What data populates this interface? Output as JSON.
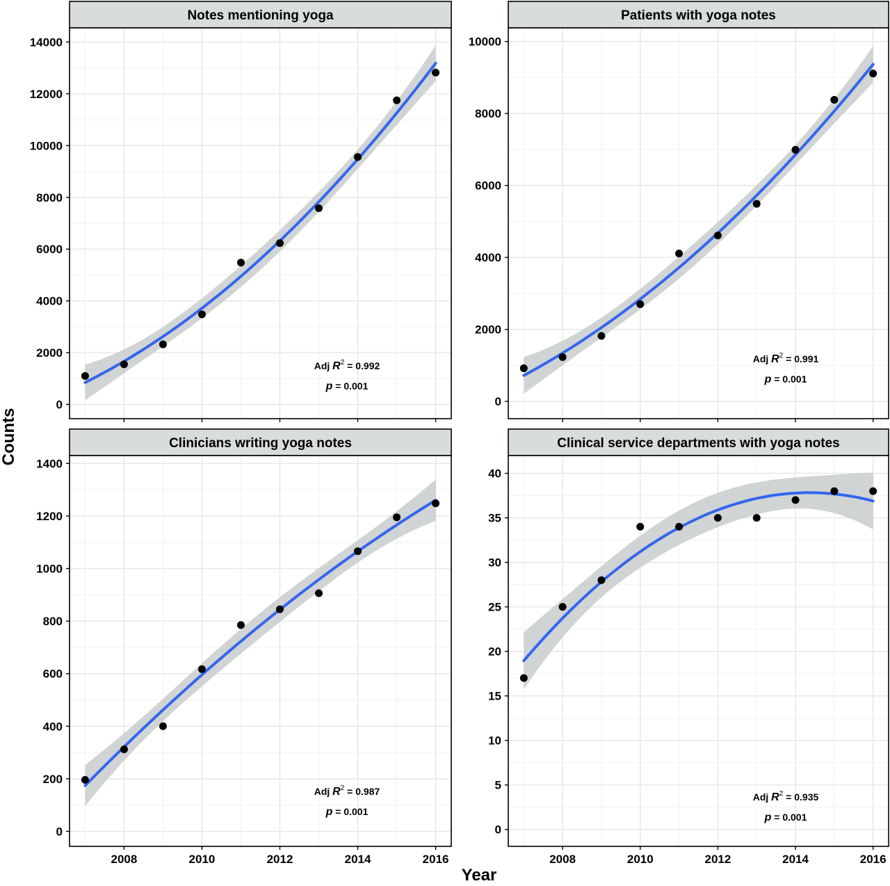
{
  "figure": {
    "xlabel": "Year",
    "ylabel": "Counts"
  },
  "chart_data": [
    {
      "type": "scatter",
      "title": "Notes mentioning yoga",
      "x": [
        2007,
        2008,
        2009,
        2010,
        2011,
        2012,
        2013,
        2014,
        2015,
        2016
      ],
      "y": [
        1100,
        1550,
        2320,
        3480,
        5480,
        6230,
        7580,
        9560,
        11750,
        12820
      ],
      "fit": "quadratic smooth with confidence band",
      "xlim": [
        2006.6,
        2016.4
      ],
      "ylim": [
        -550,
        14550
      ],
      "yticks": [
        0,
        2000,
        4000,
        6000,
        8000,
        10000,
        12000,
        14000
      ],
      "xticks": [
        2008,
        2010,
        2012,
        2014,
        2016
      ],
      "adj_r2_label": "Adj",
      "r_symbol": "R",
      "r_exp": "2",
      "r2_value": " = 0.992",
      "p_symbol": "p",
      "p_value": " = 0.001",
      "grid": true
    },
    {
      "type": "scatter",
      "title": "Patients with yoga notes",
      "x": [
        2007,
        2008,
        2009,
        2010,
        2011,
        2012,
        2013,
        2014,
        2015,
        2016
      ],
      "y": [
        920,
        1230,
        1820,
        2700,
        4110,
        4610,
        5490,
        6990,
        8380,
        9110
      ],
      "fit": "quadratic smooth with confidence band",
      "xlim": [
        2006.6,
        2016.4
      ],
      "ylim": [
        -480,
        10380
      ],
      "yticks": [
        0,
        2000,
        4000,
        6000,
        8000,
        10000
      ],
      "xticks": [
        2008,
        2010,
        2012,
        2014,
        2016
      ],
      "adj_r2_label": "Adj",
      "r_symbol": "R",
      "r_exp": "2",
      "r2_value": " = 0.991",
      "p_symbol": "p",
      "p_value": " = 0.001",
      "grid": true
    },
    {
      "type": "scatter",
      "title": "Clinicians writing yoga notes",
      "x": [
        2007,
        2008,
        2009,
        2010,
        2011,
        2012,
        2013,
        2014,
        2015,
        2016
      ],
      "y": [
        196,
        312,
        400,
        617,
        785,
        845,
        906,
        1066,
        1195,
        1248
      ],
      "fit": "quadratic smooth with confidence band",
      "xlim": [
        2006.6,
        2016.4
      ],
      "ylim": [
        -57,
        1430
      ],
      "yticks": [
        0,
        200,
        400,
        600,
        800,
        1000,
        1200,
        1400
      ],
      "xticks": [
        2008,
        2010,
        2012,
        2014,
        2016
      ],
      "adj_r2_label": "Adj",
      "r_symbol": "R",
      "r_exp": "2",
      "r2_value": " = 0.987",
      "p_symbol": "p",
      "p_value": " = 0.001",
      "grid": true
    },
    {
      "type": "scatter",
      "title": "Clinical service departments with yoga notes",
      "x": [
        2007,
        2008,
        2009,
        2010,
        2011,
        2012,
        2013,
        2014,
        2015,
        2016
      ],
      "y": [
        17,
        25,
        28,
        34,
        34,
        35,
        35,
        37,
        38,
        38
      ],
      "fit": "quadratic smooth with confidence band",
      "xlim": [
        2006.6,
        2016.4
      ],
      "ylim": [
        -1.9,
        42.0
      ],
      "yticks": [
        0,
        5,
        10,
        15,
        20,
        25,
        30,
        35,
        40
      ],
      "xticks": [
        2008,
        2010,
        2012,
        2014,
        2016
      ],
      "adj_r2_label": "Adj",
      "r_symbol": "R",
      "r_exp": "2",
      "r2_value": " = 0.935",
      "p_symbol": "p",
      "p_value": " = 0.001",
      "grid": true
    }
  ],
  "colors": {
    "fit_line": "#3366ee",
    "ribbon": "#c8cccc",
    "point": "#000000",
    "strip_fill": "#d9dcdc",
    "grid_major": "#e6e6e6",
    "grid_minor": "#f2f2f2"
  }
}
